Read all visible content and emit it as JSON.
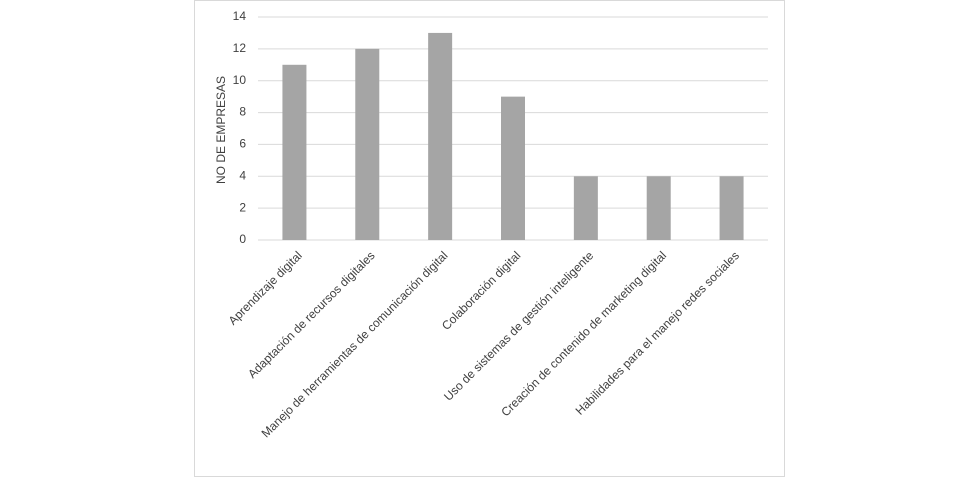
{
  "chart_data": {
    "type": "bar",
    "y_label": "NO DE EMPRESAS",
    "categories": [
      "Aprendizaje digital",
      "Adaptación de recursos digitales",
      "Manejo de herramientas de comunicación digital",
      "Colaboración digital",
      "Uso de sistemas de gestión inteligente",
      "Creación de contenido de marketing digital",
      "Habilidades para el manejo redes sociales"
    ],
    "values": [
      11,
      12,
      13,
      9,
      4,
      4,
      4
    ],
    "color": "#a5a5a5",
    "ylim": [
      0,
      14
    ],
    "yticks": [
      0,
      2,
      4,
      6,
      8,
      10,
      12,
      14
    ],
    "grid": true
  }
}
